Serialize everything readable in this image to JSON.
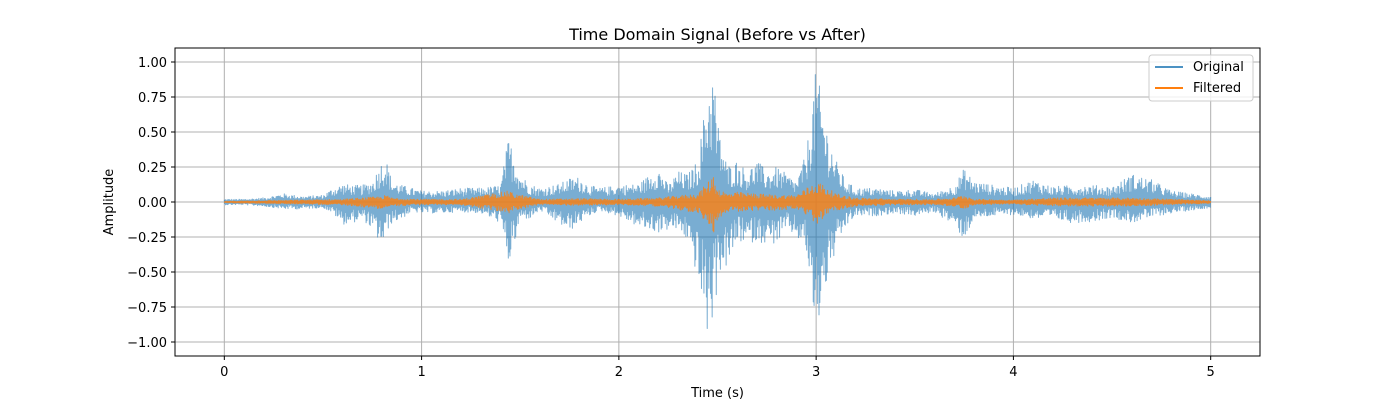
{
  "chart_data": {
    "type": "line",
    "title": "Time Domain Signal (Before vs After)",
    "xlabel": "Time (s)",
    "ylabel": "Amplitude",
    "xlim": [
      -0.25,
      5.25
    ],
    "ylim": [
      -1.1,
      1.1
    ],
    "xticks": [
      0,
      1,
      2,
      3,
      4,
      5
    ],
    "xtick_labels": [
      "0",
      "1",
      "2",
      "3",
      "4",
      "5"
    ],
    "yticks": [
      -1.0,
      -0.75,
      -0.5,
      -0.25,
      0.0,
      0.25,
      0.5,
      0.75,
      1.0
    ],
    "ytick_labels": [
      "−1.00",
      "−0.75",
      "−0.50",
      "−0.25",
      "0.00",
      "0.25",
      "0.50",
      "0.75",
      "1.00"
    ],
    "grid": true,
    "legend_position": "top-right",
    "series": [
      {
        "name": "Original",
        "color": "#1f77b4",
        "opacity": 0.6,
        "envelope_time": [
          0.0,
          0.1,
          0.2,
          0.3,
          0.4,
          0.5,
          0.55,
          0.6,
          0.65,
          0.7,
          0.75,
          0.8,
          0.82,
          0.85,
          0.9,
          0.95,
          1.0,
          1.1,
          1.2,
          1.3,
          1.4,
          1.44,
          1.47,
          1.5,
          1.55,
          1.6,
          1.7,
          1.75,
          1.8,
          1.85,
          1.9,
          2.0,
          2.1,
          2.2,
          2.25,
          2.3,
          2.35,
          2.4,
          2.45,
          2.48,
          2.5,
          2.52,
          2.55,
          2.6,
          2.65,
          2.7,
          2.75,
          2.8,
          2.85,
          2.9,
          2.95,
          3.0,
          3.03,
          3.06,
          3.1,
          3.15,
          3.2,
          3.3,
          3.4,
          3.5,
          3.6,
          3.7,
          3.75,
          3.8,
          3.9,
          4.0,
          4.1,
          4.2,
          4.3,
          4.4,
          4.5,
          4.6,
          4.7,
          4.8,
          4.9,
          5.0
        ],
        "envelope_max": [
          0.02,
          0.02,
          0.03,
          0.06,
          0.04,
          0.05,
          0.1,
          0.13,
          0.12,
          0.12,
          0.15,
          0.3,
          0.31,
          0.15,
          0.12,
          0.1,
          0.08,
          0.08,
          0.1,
          0.1,
          0.12,
          0.46,
          0.35,
          0.2,
          0.13,
          0.1,
          0.13,
          0.17,
          0.18,
          0.12,
          0.1,
          0.12,
          0.13,
          0.25,
          0.12,
          0.22,
          0.2,
          0.3,
          0.82,
          0.96,
          0.58,
          0.45,
          0.26,
          0.3,
          0.22,
          0.3,
          0.22,
          0.25,
          0.2,
          0.15,
          0.35,
          0.97,
          0.72,
          0.5,
          0.3,
          0.15,
          0.1,
          0.1,
          0.08,
          0.09,
          0.06,
          0.12,
          0.24,
          0.15,
          0.12,
          0.1,
          0.16,
          0.11,
          0.12,
          0.12,
          0.11,
          0.2,
          0.16,
          0.08,
          0.06,
          0.04
        ],
        "envelope_min": [
          -0.02,
          -0.02,
          -0.03,
          -0.05,
          -0.05,
          -0.04,
          -0.08,
          -0.16,
          -0.15,
          -0.12,
          -0.2,
          -0.32,
          -0.22,
          -0.15,
          -0.12,
          -0.07,
          -0.08,
          -0.08,
          -0.07,
          -0.08,
          -0.15,
          -0.45,
          -0.32,
          -0.12,
          -0.12,
          -0.06,
          -0.16,
          -0.21,
          -0.15,
          -0.1,
          -0.06,
          -0.1,
          -0.18,
          -0.22,
          -0.2,
          -0.2,
          -0.28,
          -0.55,
          -0.97,
          -0.84,
          -0.6,
          -0.46,
          -0.48,
          -0.28,
          -0.3,
          -0.28,
          -0.3,
          -0.3,
          -0.2,
          -0.25,
          -0.35,
          -1.0,
          -0.71,
          -0.56,
          -0.35,
          -0.18,
          -0.1,
          -0.1,
          -0.08,
          -0.1,
          -0.07,
          -0.17,
          -0.27,
          -0.12,
          -0.1,
          -0.09,
          -0.12,
          -0.12,
          -0.15,
          -0.14,
          -0.11,
          -0.15,
          -0.11,
          -0.08,
          -0.06,
          -0.04
        ]
      },
      {
        "name": "Filtered",
        "color": "#ff7f0e",
        "opacity": 0.8,
        "envelope_time": [
          0.0,
          0.2,
          0.4,
          0.6,
          0.8,
          0.82,
          0.85,
          1.0,
          1.2,
          1.44,
          1.47,
          1.6,
          1.8,
          2.0,
          2.2,
          2.4,
          2.45,
          2.48,
          2.5,
          2.55,
          2.6,
          2.7,
          2.8,
          2.9,
          3.0,
          3.03,
          3.1,
          3.2,
          3.4,
          3.6,
          3.7,
          3.75,
          3.8,
          4.0,
          4.2,
          4.4,
          4.6,
          4.8,
          5.0
        ],
        "envelope_max": [
          0.005,
          0.01,
          0.015,
          0.02,
          0.04,
          0.05,
          0.03,
          0.02,
          0.02,
          0.08,
          0.06,
          0.02,
          0.025,
          0.02,
          0.03,
          0.06,
          0.14,
          0.2,
          0.1,
          0.06,
          0.07,
          0.06,
          0.05,
          0.05,
          0.15,
          0.13,
          0.06,
          0.03,
          0.02,
          0.02,
          0.03,
          0.05,
          0.02,
          0.015,
          0.03,
          0.03,
          0.03,
          0.02,
          0.01
        ],
        "envelope_min": [
          -0.005,
          -0.01,
          -0.015,
          -0.02,
          -0.05,
          -0.04,
          -0.03,
          -0.02,
          -0.02,
          -0.08,
          -0.06,
          -0.02,
          -0.025,
          -0.02,
          -0.03,
          -0.08,
          -0.16,
          -0.22,
          -0.12,
          -0.07,
          -0.07,
          -0.06,
          -0.06,
          -0.05,
          -0.16,
          -0.13,
          -0.06,
          -0.03,
          -0.02,
          -0.02,
          -0.03,
          -0.05,
          -0.02,
          -0.015,
          -0.03,
          -0.03,
          -0.03,
          -0.02,
          -0.01
        ]
      }
    ]
  }
}
